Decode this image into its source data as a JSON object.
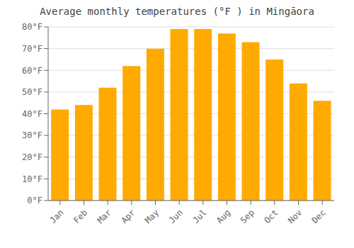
{
  "chart_data": {
    "type": "bar",
    "title": "Average monthly temperatures (°F ) in Mingāora",
    "categories": [
      "Jan",
      "Feb",
      "Mar",
      "Apr",
      "May",
      "Jun",
      "Jul",
      "Aug",
      "Sep",
      "Oct",
      "Nov",
      "Dec"
    ],
    "values": [
      42,
      44,
      52,
      62,
      70,
      79,
      79,
      77,
      73,
      65,
      54,
      46
    ],
    "color": "#FFAA00",
    "ylim": [
      0,
      80
    ],
    "yticks": [
      {
        "value": 0,
        "label": "0°F"
      },
      {
        "value": 10,
        "label": "10°F"
      },
      {
        "value": 20,
        "label": "20°F"
      },
      {
        "value": 30,
        "label": "30°F"
      },
      {
        "value": 40,
        "label": "40°F"
      },
      {
        "value": 50,
        "label": "50°F"
      },
      {
        "value": 60,
        "label": "60°F"
      },
      {
        "value": 70,
        "label": "70°F"
      },
      {
        "value": 80,
        "label": "80°F"
      }
    ],
    "grid": true
  }
}
